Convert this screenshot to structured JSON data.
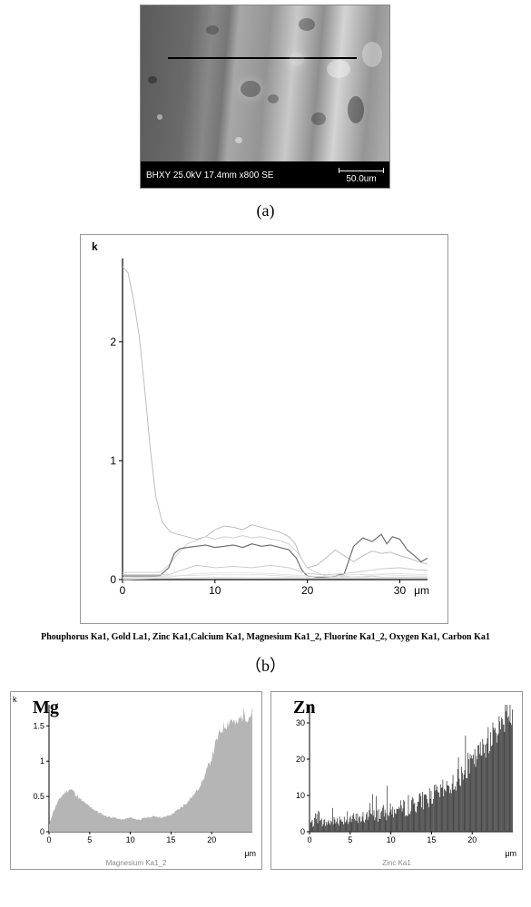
{
  "panel_a": {
    "label": "(a)",
    "sem_meta": "BHXY 25.0kV 17.4mm x800 SE",
    "scale_text": "50.0um",
    "bg_gradient_stops": [
      "#5a5a5a",
      "#6b6b6b",
      "#888888",
      "#767676",
      "#a7a7a7",
      "#949494",
      "#c9c9c9",
      "#8f8f8f",
      "#d4d4d4",
      "#959595",
      "#b0b0b0"
    ],
    "blobs": [
      {
        "l": 8,
        "t": 78,
        "w": 10,
        "h": 8,
        "c": "rgba(0,0,0,0.35)"
      },
      {
        "l": 18,
        "t": 120,
        "w": 6,
        "h": 6,
        "c": "rgba(255,255,255,0.45)"
      },
      {
        "l": 72,
        "t": 22,
        "w": 14,
        "h": 10,
        "c": "rgba(0,0,0,0.25)"
      },
      {
        "l": 104,
        "t": 145,
        "w": 8,
        "h": 7,
        "c": "rgba(255,255,255,0.45)"
      },
      {
        "l": 140,
        "t": 98,
        "w": 12,
        "h": 10,
        "c": "rgba(0,0,0,0.28)"
      },
      {
        "l": 174,
        "t": 14,
        "w": 18,
        "h": 14,
        "c": "rgba(0,0,0,0.3)"
      },
      {
        "l": 205,
        "t": 60,
        "w": 26,
        "h": 20,
        "c": "rgba(255,255,255,0.38)"
      },
      {
        "l": 188,
        "t": 118,
        "w": 16,
        "h": 14,
        "c": "rgba(0,0,0,0.28)"
      },
      {
        "l": 228,
        "t": 100,
        "w": 18,
        "h": 30,
        "c": "rgba(0,0,0,0.35)"
      },
      {
        "l": 244,
        "t": 40,
        "w": 22,
        "h": 28,
        "c": "rgba(255,255,255,0.32)"
      }
    ]
  },
  "panel_b": {
    "label": "（b）",
    "y_title": "k",
    "x_unit": "μm",
    "xlim": [
      0,
      33
    ],
    "ylim": [
      0,
      2.7
    ],
    "xticks": [
      0,
      10,
      20,
      30
    ],
    "yticks": [
      0,
      1,
      2
    ],
    "axis_color": "#000000",
    "tick_fontsize": 12,
    "caption": "Phouphorus Ka1,  Gold La1,  Zinc Ka1,Calcium Ka1, Magnesium Ka1_2, Fluorine Ka1_2,  Oxygen Ka1, Carbon Ka1",
    "series": [
      {
        "name": "s1",
        "color": "#bdbdbd",
        "width": 1,
        "pts": [
          [
            0,
            2.63
          ],
          [
            0.6,
            2.58
          ],
          [
            1.2,
            2.35
          ],
          [
            1.8,
            2.05
          ],
          [
            2.4,
            1.6
          ],
          [
            3.0,
            1.1
          ],
          [
            3.6,
            0.7
          ],
          [
            4.3,
            0.48
          ],
          [
            5.2,
            0.4
          ],
          [
            6,
            0.38
          ],
          [
            7,
            0.36
          ],
          [
            8,
            0.34
          ],
          [
            9,
            0.36
          ],
          [
            10,
            0.42
          ],
          [
            11,
            0.45
          ],
          [
            12,
            0.44
          ],
          [
            13,
            0.42
          ],
          [
            14,
            0.46
          ],
          [
            15,
            0.44
          ],
          [
            16,
            0.42
          ],
          [
            17,
            0.4
          ],
          [
            18,
            0.36
          ],
          [
            18.7,
            0.3
          ],
          [
            19.3,
            0.18
          ],
          [
            20,
            0.1
          ],
          [
            21,
            0.12
          ],
          [
            22,
            0.18
          ],
          [
            23,
            0.25
          ],
          [
            24,
            0.2
          ],
          [
            25,
            0.15
          ],
          [
            26,
            0.2
          ],
          [
            27,
            0.24
          ],
          [
            28,
            0.22
          ],
          [
            29,
            0.23
          ],
          [
            30,
            0.2
          ],
          [
            31,
            0.18
          ],
          [
            32,
            0.15
          ],
          [
            33,
            0.13
          ]
        ]
      },
      {
        "name": "s2",
        "color": "#d0d0d0",
        "width": 1,
        "pts": [
          [
            0,
            0.06
          ],
          [
            4,
            0.06
          ],
          [
            5,
            0.12
          ],
          [
            6,
            0.22
          ],
          [
            7,
            0.3
          ],
          [
            8,
            0.33
          ],
          [
            9,
            0.36
          ],
          [
            10,
            0.34
          ],
          [
            11,
            0.36
          ],
          [
            12,
            0.35
          ],
          [
            13,
            0.37
          ],
          [
            14,
            0.35
          ],
          [
            15,
            0.36
          ],
          [
            16,
            0.34
          ],
          [
            17,
            0.33
          ],
          [
            18,
            0.3
          ],
          [
            19,
            0.22
          ],
          [
            20,
            0.1
          ],
          [
            21,
            0.06
          ],
          [
            22,
            0.03
          ],
          [
            23,
            0.02
          ],
          [
            24,
            0.03
          ],
          [
            25,
            0.02
          ],
          [
            26,
            0.02
          ],
          [
            27,
            0.03
          ],
          [
            28,
            0.02
          ],
          [
            29,
            0.02
          ],
          [
            30,
            0.02
          ],
          [
            31,
            0.02
          ],
          [
            32,
            0.02
          ],
          [
            33,
            0.02
          ]
        ]
      },
      {
        "name": "s3",
        "color": "#6e6e6e",
        "width": 1.2,
        "pts": [
          [
            0,
            0.03
          ],
          [
            4,
            0.03
          ],
          [
            5,
            0.1
          ],
          [
            5.6,
            0.22
          ],
          [
            6.2,
            0.26
          ],
          [
            7,
            0.27
          ],
          [
            8,
            0.28
          ],
          [
            9,
            0.29
          ],
          [
            10,
            0.27
          ],
          [
            11,
            0.28
          ],
          [
            12,
            0.29
          ],
          [
            13,
            0.27
          ],
          [
            14,
            0.3
          ],
          [
            15,
            0.28
          ],
          [
            16,
            0.29
          ],
          [
            17,
            0.27
          ],
          [
            18,
            0.25
          ],
          [
            18.8,
            0.18
          ],
          [
            19.4,
            0.08
          ],
          [
            20,
            0.03
          ],
          [
            21,
            0.02
          ],
          [
            22,
            0.02
          ],
          [
            23,
            0.03
          ],
          [
            24,
            0.05
          ],
          [
            25,
            0.28
          ],
          [
            26,
            0.35
          ],
          [
            27,
            0.32
          ],
          [
            28,
            0.38
          ],
          [
            28.6,
            0.3
          ],
          [
            29.2,
            0.36
          ],
          [
            30,
            0.34
          ],
          [
            30.8,
            0.25
          ],
          [
            31.6,
            0.2
          ],
          [
            32.3,
            0.15
          ],
          [
            33,
            0.18
          ]
        ]
      },
      {
        "name": "s4",
        "color": "#c7c7c7",
        "width": 0.9,
        "pts": [
          [
            0,
            0.04
          ],
          [
            5,
            0.04
          ],
          [
            6,
            0.07
          ],
          [
            8,
            0.12
          ],
          [
            10,
            0.1
          ],
          [
            12,
            0.11
          ],
          [
            14,
            0.1
          ],
          [
            16,
            0.12
          ],
          [
            18,
            0.1
          ],
          [
            20,
            0.05
          ],
          [
            22,
            0.04
          ],
          [
            24,
            0.05
          ],
          [
            26,
            0.07
          ],
          [
            28,
            0.09
          ],
          [
            30,
            0.1
          ],
          [
            32,
            0.08
          ],
          [
            33,
            0.08
          ]
        ]
      },
      {
        "name": "s5",
        "color": "#e0e0e0",
        "width": 0.8,
        "pts": [
          [
            0,
            0.02
          ],
          [
            5,
            0.02
          ],
          [
            8,
            0.05
          ],
          [
            12,
            0.06
          ],
          [
            16,
            0.05
          ],
          [
            20,
            0.03
          ],
          [
            24,
            0.02
          ],
          [
            28,
            0.04
          ],
          [
            32,
            0.03
          ],
          [
            33,
            0.03
          ]
        ]
      },
      {
        "name": "s6",
        "color": "#e5e5e5",
        "width": 0.8,
        "pts": [
          [
            0,
            0.01
          ],
          [
            10,
            0.01
          ],
          [
            18,
            0.02
          ],
          [
            20,
            0.01
          ],
          [
            25,
            0.02
          ],
          [
            30,
            0.01
          ],
          [
            33,
            0.01
          ]
        ]
      },
      {
        "name": "s7",
        "color": "#d6d6d6",
        "width": 0.8,
        "pts": [
          [
            0,
            0.0
          ],
          [
            10,
            0.02
          ],
          [
            20,
            0.01
          ],
          [
            33,
            0.01
          ]
        ]
      },
      {
        "name": "s8",
        "color": "#dcdcdc",
        "width": 0.8,
        "pts": [
          [
            0,
            0.01
          ],
          [
            5,
            0.03
          ],
          [
            10,
            0.04
          ],
          [
            15,
            0.04
          ],
          [
            20,
            0.02
          ],
          [
            25,
            0.04
          ],
          [
            30,
            0.05
          ],
          [
            33,
            0.04
          ]
        ]
      }
    ]
  },
  "panel_c": {
    "title": "Mg",
    "y_unit": "k",
    "x_unit": "μm",
    "sub_caption": "Magnesium Ka1_2",
    "xlim": [
      0,
      25
    ],
    "ylim": [
      0,
      1.8
    ],
    "xticks": [
      0,
      5,
      10,
      15,
      20
    ],
    "yticks": [
      0,
      0.5,
      1,
      1.5
    ],
    "fill_color": "#b5b5b5",
    "axis_color": "#000000",
    "tick_fontsize": 9,
    "area_pts": [
      [
        0,
        0.1
      ],
      [
        0.5,
        0.28
      ],
      [
        1,
        0.4
      ],
      [
        1.5,
        0.5
      ],
      [
        2,
        0.56
      ],
      [
        2.5,
        0.6
      ],
      [
        3,
        0.58
      ],
      [
        3.5,
        0.5
      ],
      [
        4,
        0.44
      ],
      [
        4.5,
        0.4
      ],
      [
        5,
        0.35
      ],
      [
        5.5,
        0.32
      ],
      [
        6,
        0.28
      ],
      [
        7,
        0.22
      ],
      [
        8,
        0.2
      ],
      [
        9,
        0.17
      ],
      [
        10,
        0.2
      ],
      [
        11,
        0.17
      ],
      [
        12,
        0.2
      ],
      [
        13,
        0.22
      ],
      [
        14,
        0.2
      ],
      [
        15,
        0.24
      ],
      [
        16,
        0.32
      ],
      [
        17,
        0.42
      ],
      [
        18,
        0.55
      ],
      [
        19,
        0.75
      ],
      [
        20,
        1.05
      ],
      [
        20.5,
        1.25
      ],
      [
        21,
        1.4
      ],
      [
        21.5,
        1.5
      ],
      [
        22,
        1.55
      ],
      [
        22.5,
        1.6
      ],
      [
        23,
        1.5
      ],
      [
        23.5,
        1.6
      ],
      [
        24,
        1.68
      ],
      [
        24.5,
        1.62
      ],
      [
        25,
        1.7
      ]
    ]
  },
  "panel_d": {
    "title": "Zn",
    "x_unit": "μm",
    "sub_caption": "Zinc Ka1",
    "xlim": [
      0,
      25
    ],
    "ylim": [
      0,
      35
    ],
    "xticks": [
      0,
      5,
      10,
      15,
      20
    ],
    "yticks": [
      0,
      10,
      20,
      30
    ],
    "bar_color": "#3b3b3b",
    "axis_color": "#000000",
    "tick_fontsize": 9,
    "trend": [
      [
        0,
        2
      ],
      [
        2,
        2
      ],
      [
        4,
        3
      ],
      [
        6,
        3
      ],
      [
        8,
        4
      ],
      [
        10,
        5
      ],
      [
        12,
        6
      ],
      [
        14,
        8
      ],
      [
        16,
        10
      ],
      [
        18,
        13
      ],
      [
        20,
        18
      ],
      [
        22,
        24
      ],
      [
        24,
        30
      ],
      [
        25,
        32
      ]
    ],
    "noise_amp": 6,
    "n_bars": 260
  }
}
